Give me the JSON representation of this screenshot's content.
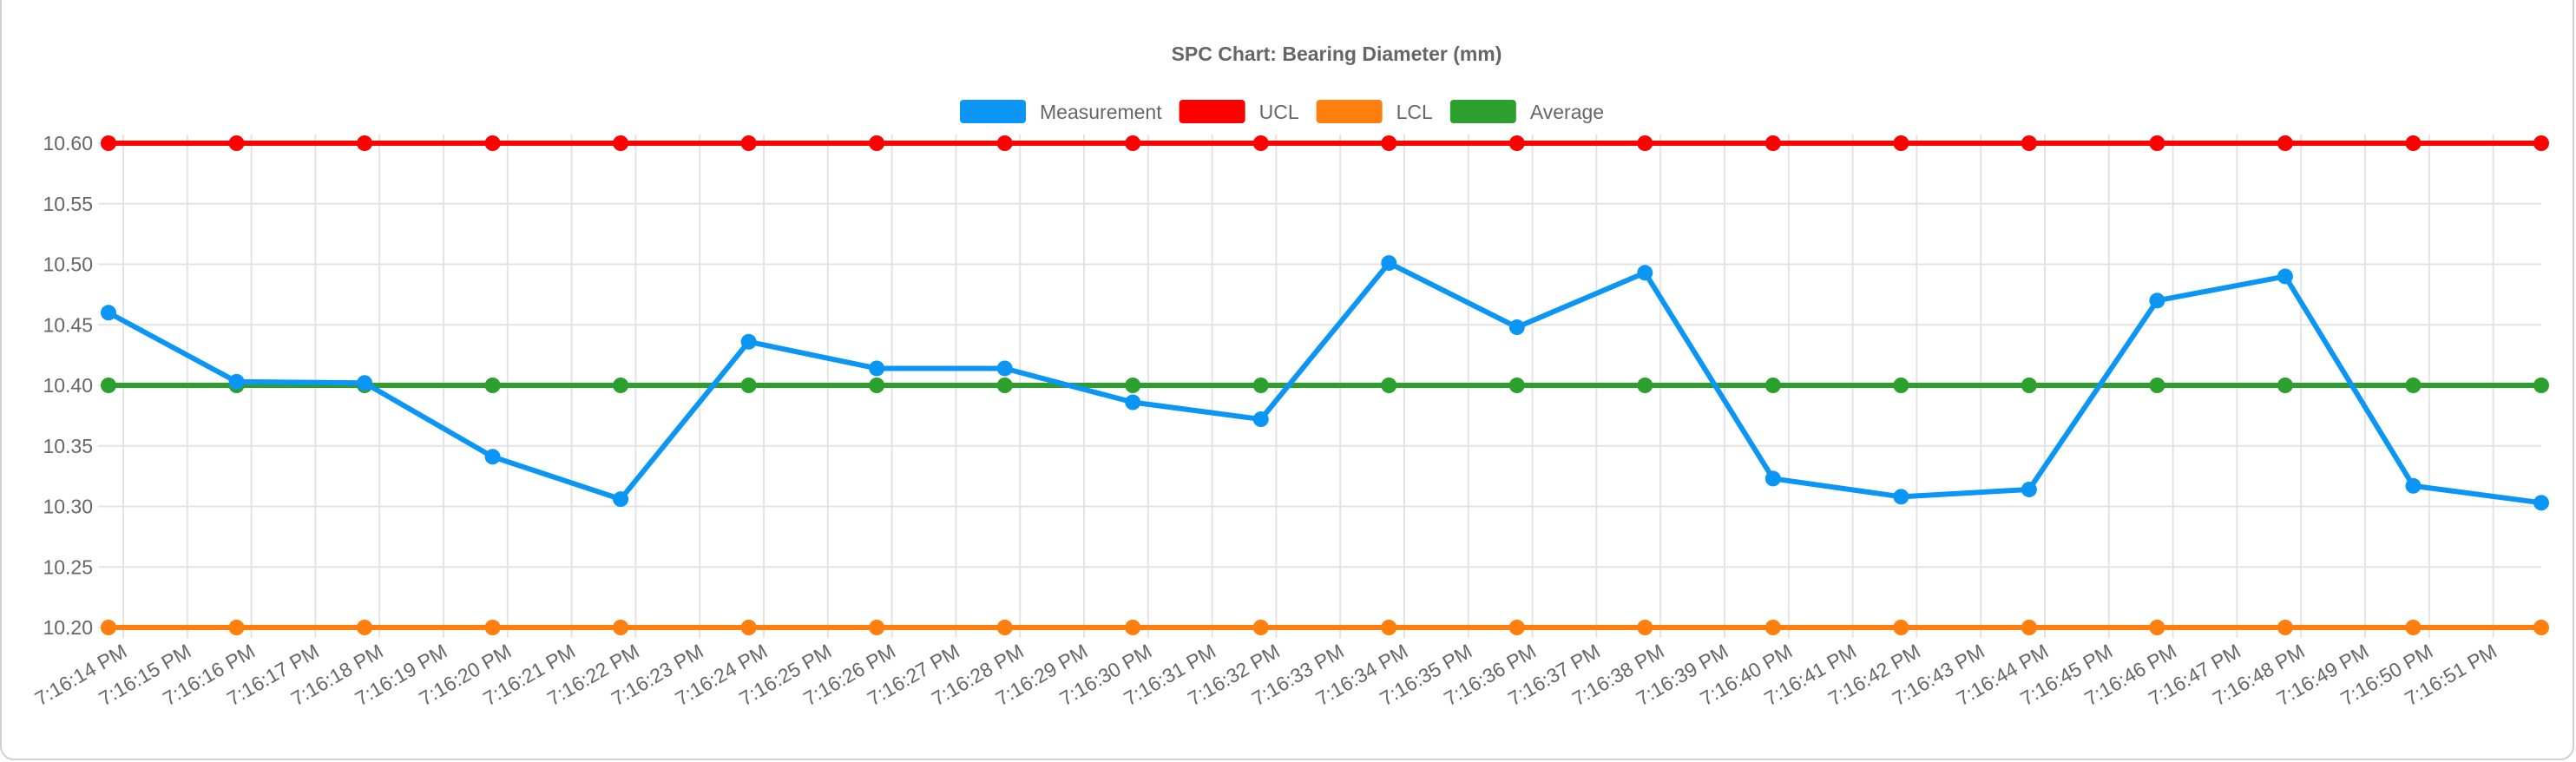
{
  "chart_data": {
    "type": "line",
    "title": "SPC Chart: Bearing Diameter (mm)",
    "xlabel": "",
    "ylabel": "",
    "ylim": [
      10.2,
      10.6
    ],
    "yticks": [
      "10.60",
      "10.55",
      "10.50",
      "10.45",
      "10.40",
      "10.35",
      "10.30",
      "10.25",
      "10.20"
    ],
    "x_tick_labels": [
      "7:16:14 PM",
      "7:16:15 PM",
      "7:16:16 PM",
      "7:16:17 PM",
      "7:16:18 PM",
      "7:16:19 PM",
      "7:16:20 PM",
      "7:16:21 PM",
      "7:16:22 PM",
      "7:16:23 PM",
      "7:16:24 PM",
      "7:16:25 PM",
      "7:16:26 PM",
      "7:16:27 PM",
      "7:16:28 PM",
      "7:16:29 PM",
      "7:16:30 PM",
      "7:16:31 PM",
      "7:16:32 PM",
      "7:16:33 PM",
      "7:16:34 PM",
      "7:16:35 PM",
      "7:16:36 PM",
      "7:16:37 PM",
      "7:16:38 PM",
      "7:16:39 PM",
      "7:16:40 PM",
      "7:16:41 PM",
      "7:16:42 PM",
      "7:16:43 PM",
      "7:16:44 PM",
      "7:16:45 PM",
      "7:16:46 PM",
      "7:16:47 PM",
      "7:16:48 PM",
      "7:16:49 PM",
      "7:16:50 PM",
      "7:16:51 PM"
    ],
    "grid": true,
    "legend_position": "top",
    "series": [
      {
        "name": "Measurement",
        "color": "#0b96f5",
        "values": [
          10.46,
          10.403,
          10.402,
          10.341,
          10.306,
          10.436,
          10.414,
          10.414,
          10.386,
          10.372,
          10.501,
          10.448,
          10.493,
          10.323,
          10.308,
          10.314,
          10.47,
          10.49,
          10.317,
          10.303
        ]
      },
      {
        "name": "UCL",
        "color": "#ff0000",
        "values": [
          10.6,
          10.6,
          10.6,
          10.6,
          10.6,
          10.6,
          10.6,
          10.6,
          10.6,
          10.6,
          10.6,
          10.6,
          10.6,
          10.6,
          10.6,
          10.6,
          10.6,
          10.6,
          10.6,
          10.6
        ]
      },
      {
        "name": "LCL",
        "color": "#ff7f0e",
        "values": [
          10.2,
          10.2,
          10.2,
          10.2,
          10.2,
          10.2,
          10.2,
          10.2,
          10.2,
          10.2,
          10.2,
          10.2,
          10.2,
          10.2,
          10.2,
          10.2,
          10.2,
          10.2,
          10.2,
          10.2
        ]
      },
      {
        "name": "Average",
        "color": "#2ca02c",
        "values": [
          10.4,
          10.4,
          10.4,
          10.4,
          10.4,
          10.4,
          10.4,
          10.4,
          10.4,
          10.4,
          10.4,
          10.4,
          10.4,
          10.4,
          10.4,
          10.4,
          10.4,
          10.4,
          10.4,
          10.4
        ]
      }
    ]
  }
}
